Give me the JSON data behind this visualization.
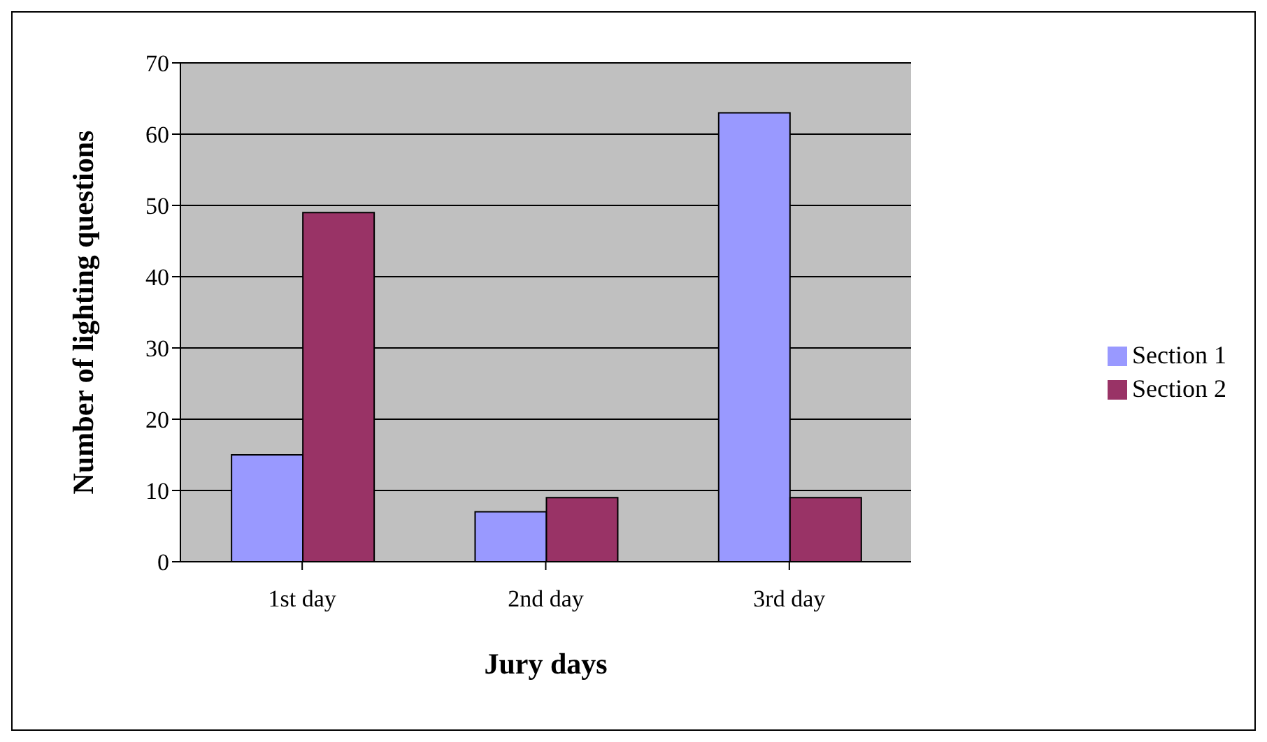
{
  "chart_data": {
    "type": "bar",
    "xlabel": "Jury days",
    "ylabel": "Number of lighting questions",
    "categories": [
      "1st day",
      "2nd day",
      "3rd day"
    ],
    "series": [
      {
        "name": "Section 1",
        "color": "#9999ff",
        "values": [
          15,
          7,
          63
        ]
      },
      {
        "name": "Section 2",
        "color": "#993366",
        "values": [
          49,
          9,
          9
        ]
      }
    ],
    "ylim": [
      0,
      70
    ],
    "yticks": [
      0,
      10,
      20,
      30,
      40,
      50,
      60,
      70
    ],
    "grid": "y",
    "legend": "right"
  }
}
